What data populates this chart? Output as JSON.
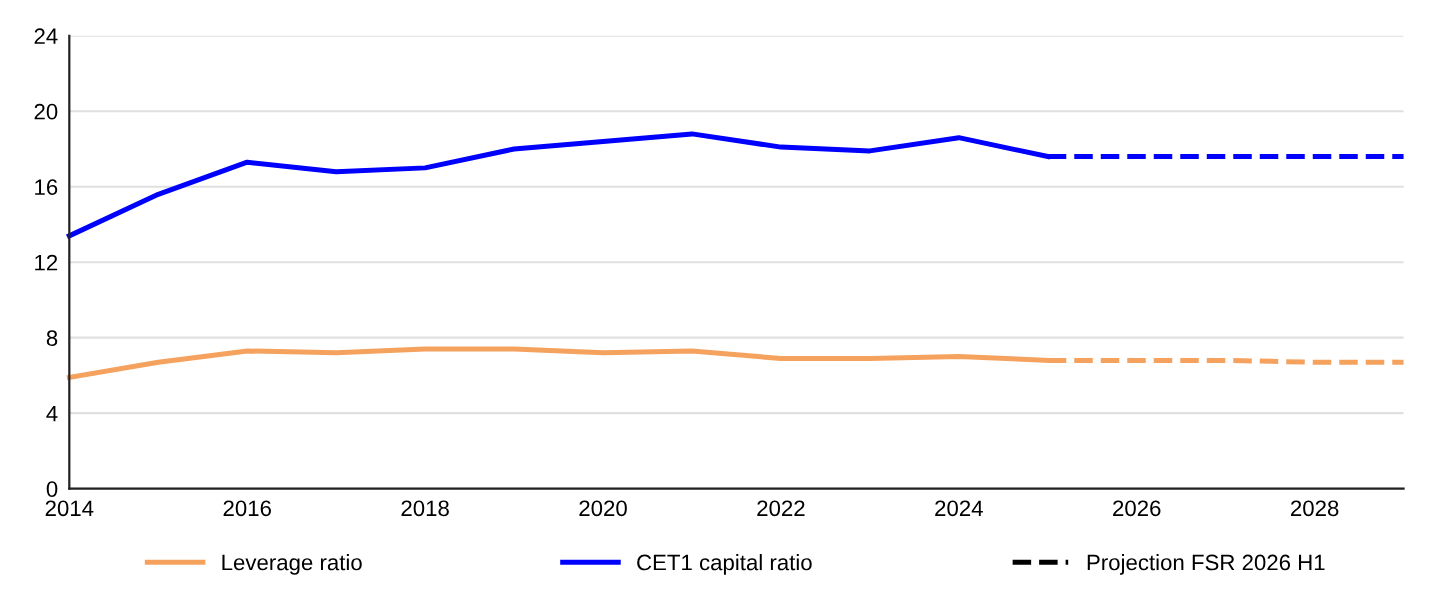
{
  "chart_data": {
    "type": "line",
    "xlim": [
      2014,
      2029
    ],
    "xticks": [
      2014,
      2016,
      2018,
      2020,
      2022,
      2024,
      2026,
      2028
    ],
    "ylim": [
      0,
      24
    ],
    "yticks": [
      0,
      4,
      8,
      12,
      16,
      20,
      24
    ],
    "grid": "y",
    "legend": "bottom",
    "x": [
      2014,
      2015,
      2016,
      2017,
      2018,
      2019,
      2020,
      2021,
      2022,
      2023,
      2024,
      2025
    ],
    "series": [
      {
        "name": "Leverage ratio",
        "color": "#f4a25e",
        "line_style": "solid",
        "values": [
          5.9,
          6.7,
          7.3,
          7.2,
          7.4,
          7.4,
          7.2,
          7.3,
          6.9,
          6.9,
          7.0,
          6.8
        ]
      },
      {
        "name": "CET1 capital ratio",
        "color": "#0000ff",
        "line_style": "solid",
        "values": [
          13.4,
          15.6,
          17.3,
          16.8,
          17.0,
          18.0,
          18.4,
          18.8,
          18.1,
          17.9,
          18.6,
          17.6
        ]
      },
      {
        "name": "Projection FSR 2026 H1",
        "color": "#000000",
        "line_style": "dashed",
        "values": [
          null,
          null,
          null,
          null,
          null,
          null,
          null,
          null,
          null,
          null,
          null,
          null
        ]
      },
      {
        "color": "#f4a25e",
        "line_style": "dashed",
        "x": [
          2025,
          2026,
          2027,
          2028,
          2029
        ],
        "values": [
          6.8,
          6.8,
          6.8,
          6.7,
          6.7
        ]
      },
      {
        "color": "#0000ff",
        "line_style": "dashed",
        "x": [
          2025,
          2026,
          2027,
          2028,
          2029
        ],
        "values": [
          17.6,
          17.6,
          17.6,
          17.6,
          17.6
        ]
      }
    ]
  }
}
